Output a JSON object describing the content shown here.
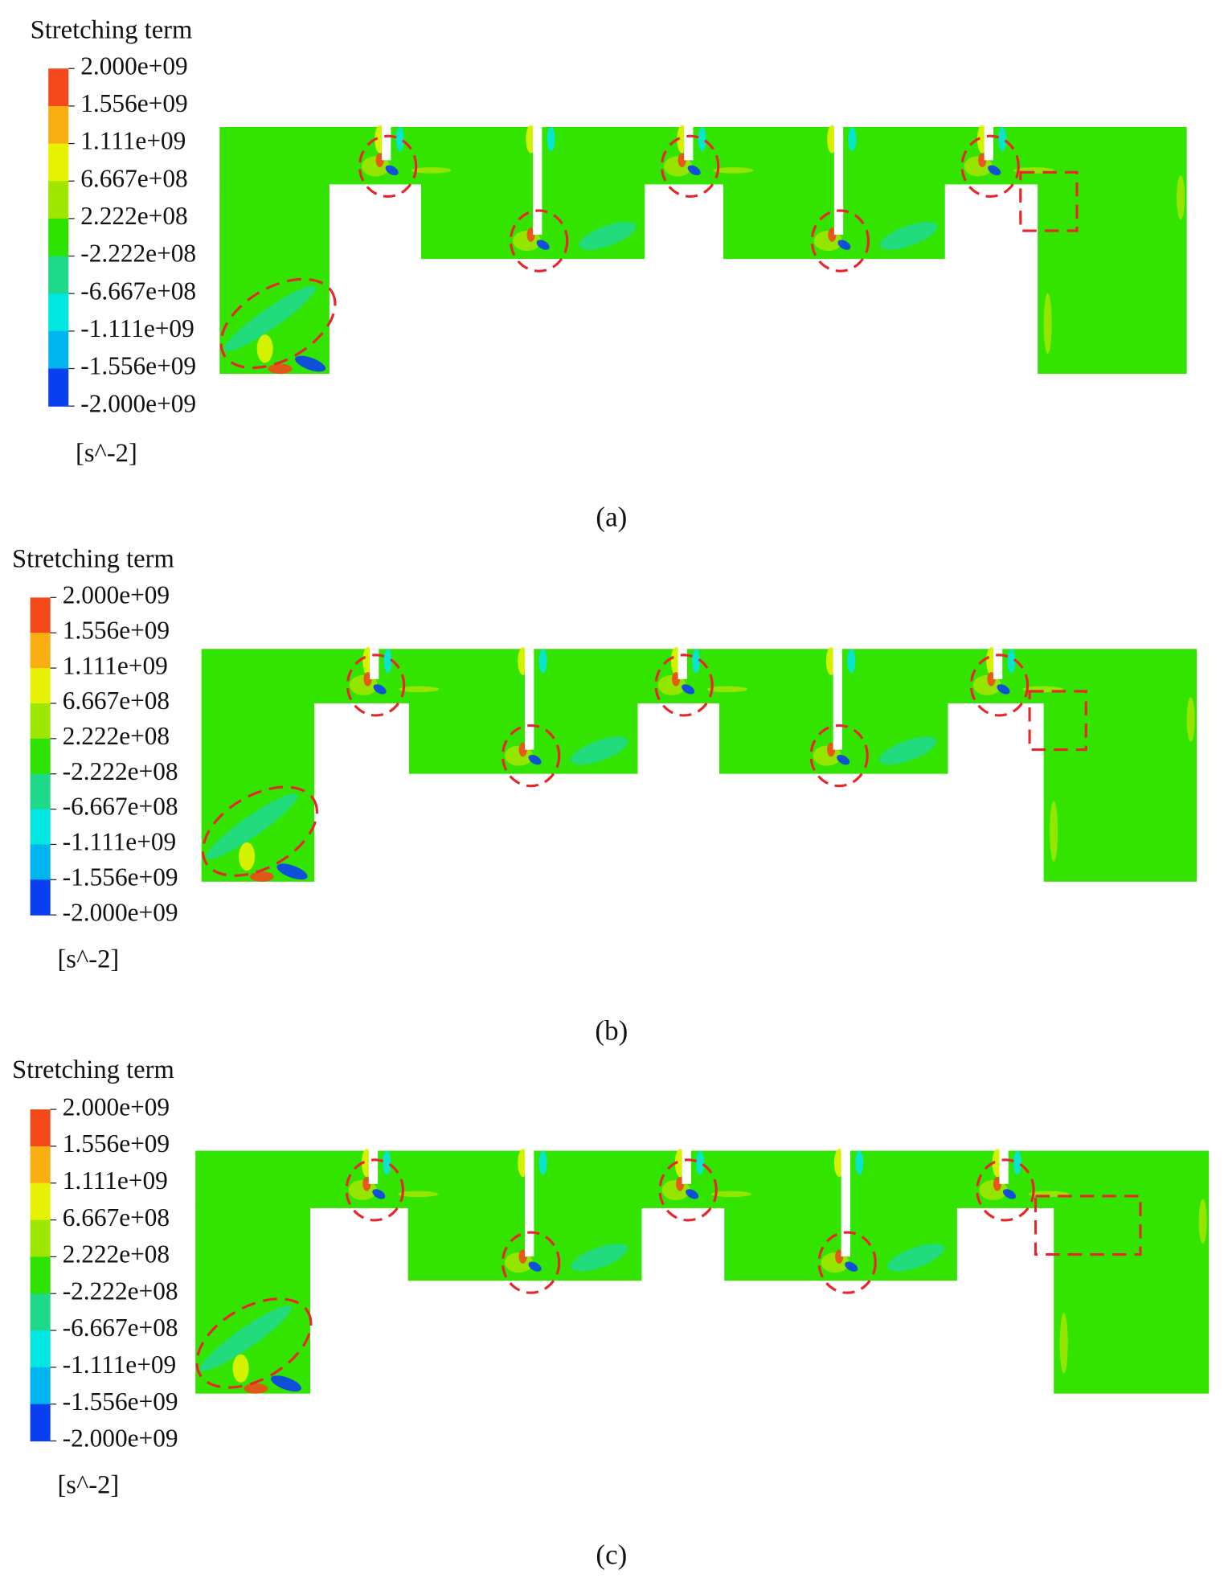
{
  "panels": [
    {
      "legend": {
        "title": "Stretching term",
        "labels": [
          "2.000e+09",
          "1.556e+09",
          "1.111e+09",
          "6.667e+08",
          "2.222e+08",
          "-2.222e+08",
          "-6.667e+08",
          "-1.111e+09",
          "-1.556e+09",
          "-2.000e+09"
        ],
        "unit": "[s^-2]"
      },
      "caption": "(a)"
    },
    {
      "legend": {
        "title": "Stretching term",
        "labels": [
          "2.000e+09",
          "1.556e+09",
          "1.111e+09",
          "6.667e+08",
          "2.222e+08",
          "-2.222e+08",
          "-6.667e+08",
          "-1.111e+09",
          "-1.556e+09",
          "-2.000e+09"
        ],
        "unit": "[s^-2]"
      },
      "caption": "(b)"
    },
    {
      "legend": {
        "title": "Stretching term",
        "labels": [
          "2.000e+09",
          "1.556e+09",
          "1.111e+09",
          "6.667e+08",
          "2.222e+08",
          "-2.222e+08",
          "-6.667e+08",
          "-1.111e+09",
          "-1.556e+09",
          "-2.000e+09"
        ],
        "unit": "[s^-2]"
      },
      "caption": "(c)"
    }
  ]
}
